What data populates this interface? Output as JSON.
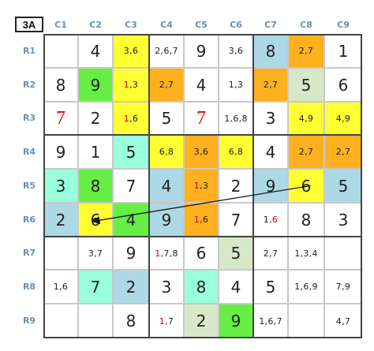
{
  "puzzle_label": "3A",
  "columns": [
    "C1",
    "C2",
    "C3",
    "C4",
    "C5",
    "C6",
    "C7",
    "C8",
    "C9"
  ],
  "rows": [
    "R1",
    "R2",
    "R3",
    "R4",
    "R5",
    "R6",
    "R7",
    "R8",
    "R9"
  ],
  "colors": {
    "yellow": "#ffff33",
    "orange": "#ffb01f",
    "green": "#66ee44",
    "mint": "#99ffdd",
    "lightblue": "#add8e6",
    "sage": "#d6e8c8",
    "white": "#ffffff"
  },
  "cells": [
    [
      {
        "t": "",
        "bg": "white"
      },
      {
        "t": "4",
        "bg": "white"
      },
      {
        "t": "3,6",
        "bg": "yellow"
      },
      {
        "t": "2,6,7",
        "bg": "white"
      },
      {
        "t": "9",
        "bg": "white"
      },
      {
        "t": "3,6",
        "bg": "white"
      },
      {
        "t": "8",
        "bg": "lightblue"
      },
      {
        "t": "2,7",
        "bg": "orange"
      },
      {
        "t": "1",
        "bg": "white"
      }
    ],
    [
      {
        "t": "8",
        "bg": "white"
      },
      {
        "t": "9",
        "bg": "green"
      },
      {
        "t": "1,3",
        "bg": "yellow",
        "red": "1"
      },
      {
        "t": "2,7",
        "bg": "orange"
      },
      {
        "t": "4",
        "bg": "white"
      },
      {
        "t": "1,3",
        "bg": "white"
      },
      {
        "t": "2,7",
        "bg": "orange"
      },
      {
        "t": "5",
        "bg": "sage"
      },
      {
        "t": "6",
        "bg": "white"
      }
    ],
    [
      {
        "t": "7",
        "bg": "white",
        "redv": true
      },
      {
        "t": "2",
        "bg": "white"
      },
      {
        "t": "1,6",
        "bg": "yellow",
        "red": "1"
      },
      {
        "t": "5",
        "bg": "white"
      },
      {
        "t": "7",
        "bg": "white",
        "redv": true
      },
      {
        "t": "1,6,8",
        "bg": "white"
      },
      {
        "t": "3",
        "bg": "white"
      },
      {
        "t": "4,9",
        "bg": "yellow"
      },
      {
        "t": "4,9",
        "bg": "yellow"
      }
    ],
    [
      {
        "t": "9",
        "bg": "white"
      },
      {
        "t": "1",
        "bg": "white"
      },
      {
        "t": "5",
        "bg": "mint"
      },
      {
        "t": "6,8",
        "bg": "yellow"
      },
      {
        "t": "3,6",
        "bg": "orange"
      },
      {
        "t": "6,8",
        "bg": "yellow"
      },
      {
        "t": "4",
        "bg": "white"
      },
      {
        "t": "2,7",
        "bg": "orange"
      },
      {
        "t": "2,7",
        "bg": "orange"
      }
    ],
    [
      {
        "t": "3",
        "bg": "mint"
      },
      {
        "t": "8",
        "bg": "green"
      },
      {
        "t": "7",
        "bg": "white"
      },
      {
        "t": "4",
        "bg": "lightblue"
      },
      {
        "t": "1,3",
        "bg": "orange",
        "red": "1"
      },
      {
        "t": "2",
        "bg": "white"
      },
      {
        "t": "9",
        "bg": "lightblue"
      },
      {
        "t": "6",
        "bg": "yellow"
      },
      {
        "t": "5",
        "bg": "lightblue"
      }
    ],
    [
      {
        "t": "2",
        "bg": "lightblue"
      },
      {
        "t": "6",
        "bg": "yellow"
      },
      {
        "t": "4",
        "bg": "green"
      },
      {
        "t": "9",
        "bg": "lightblue"
      },
      {
        "t": "1,6",
        "bg": "orange",
        "red": "1"
      },
      {
        "t": "7",
        "bg": "white"
      },
      {
        "t": "1,6",
        "bg": "white",
        "red": "6"
      },
      {
        "t": "8",
        "bg": "white"
      },
      {
        "t": "3",
        "bg": "white"
      }
    ],
    [
      {
        "t": "",
        "bg": "white"
      },
      {
        "t": "3,7",
        "bg": "white"
      },
      {
        "t": "9",
        "bg": "white"
      },
      {
        "t": "1,7,8",
        "bg": "white",
        "red": "1"
      },
      {
        "t": "6",
        "bg": "white"
      },
      {
        "t": "5",
        "bg": "sage"
      },
      {
        "t": "2,7",
        "bg": "white"
      },
      {
        "t": "1,3,4",
        "bg": "white"
      },
      {
        "t": "",
        "bg": "white"
      }
    ],
    [
      {
        "t": "1,6",
        "bg": "white"
      },
      {
        "t": "7",
        "bg": "mint"
      },
      {
        "t": "2",
        "bg": "lightblue"
      },
      {
        "t": "3",
        "bg": "white"
      },
      {
        "t": "8",
        "bg": "mint"
      },
      {
        "t": "4",
        "bg": "white"
      },
      {
        "t": "5",
        "bg": "white"
      },
      {
        "t": "1,6,9",
        "bg": "white"
      },
      {
        "t": "7,9",
        "bg": "white"
      }
    ],
    [
      {
        "t": "",
        "bg": "white"
      },
      {
        "t": "",
        "bg": "white"
      },
      {
        "t": "8",
        "bg": "white"
      },
      {
        "t": "1,7",
        "bg": "white",
        "red": "1"
      },
      {
        "t": "2",
        "bg": "sage"
      },
      {
        "t": "9",
        "bg": "green"
      },
      {
        "t": "1,6,7",
        "bg": "white"
      },
      {
        "t": "",
        "bg": "white"
      },
      {
        "t": "4,7",
        "bg": "white"
      }
    ]
  ],
  "link": {
    "from": "R5C8",
    "to": "R6C2",
    "color": "#1a1a1a"
  }
}
